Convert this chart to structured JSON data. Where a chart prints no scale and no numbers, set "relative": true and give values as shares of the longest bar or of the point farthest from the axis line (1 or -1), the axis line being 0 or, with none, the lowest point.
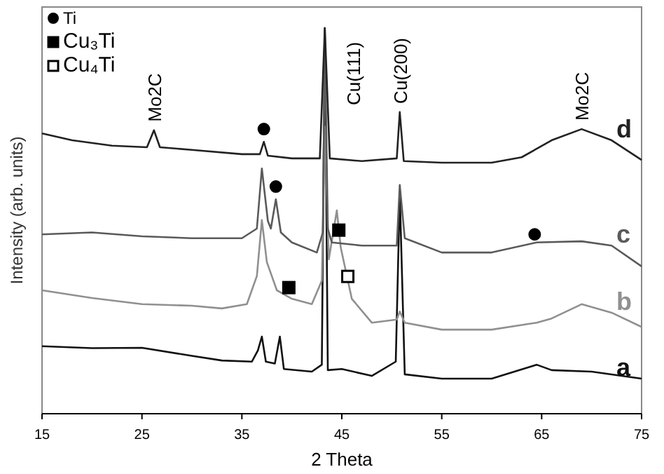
{
  "chart_data": {
    "type": "line",
    "relative": true,
    "xlabel": "2 Theta",
    "ylabel": "Intensity (arb. units)",
    "xlim": [
      15,
      75
    ],
    "xticks": [
      15,
      25,
      35,
      45,
      55,
      65,
      75
    ],
    "legend": "top left",
    "line_style": "solid",
    "series": [
      {
        "name": "a",
        "color": "#111111",
        "x": [
          15,
          20,
          25,
          30,
          33,
          36,
          36.6,
          37,
          37.4,
          38.3,
          38.8,
          39.2,
          42,
          43,
          43.3,
          43.6,
          45,
          48,
          50.4,
          50.8,
          51.3,
          55,
          60,
          64.5,
          66,
          70,
          75
        ],
        "values": [
          0.175,
          0.17,
          0.171,
          0.15,
          0.138,
          0.135,
          0.164,
          0.2,
          0.135,
          0.13,
          0.2,
          0.116,
          0.109,
          0.127,
          1.0,
          0.113,
          0.116,
          0.098,
          0.135,
          0.571,
          0.102,
          0.091,
          0.091,
          0.127,
          0.113,
          0.109,
          0.091
        ]
      },
      {
        "name": "b",
        "color": "#909090",
        "x": [
          15,
          20,
          25,
          30,
          33,
          35.5,
          36.5,
          37,
          37.5,
          38.5,
          40,
          42,
          43,
          43.3,
          43.7,
          44.5,
          44.9,
          46,
          48,
          50.5,
          50.8,
          51.3,
          55,
          60,
          64.5,
          66,
          69,
          72,
          75
        ],
        "values": [
          0.32,
          0.3,
          0.284,
          0.28,
          0.273,
          0.284,
          0.357,
          0.502,
          0.393,
          0.32,
          0.298,
          0.284,
          0.345,
          0.745,
          0.4,
          0.527,
          0.43,
          0.298,
          0.236,
          0.244,
          0.265,
          0.236,
          0.218,
          0.218,
          0.236,
          0.247,
          0.284,
          0.262,
          0.225
        ]
      },
      {
        "name": "c",
        "color": "#5a5a5a",
        "x": [
          15,
          20,
          25,
          30,
          35,
          36.5,
          37,
          37.6,
          37.9,
          38.4,
          38.9,
          40,
          42.5,
          43.1,
          43.3,
          43.6,
          44,
          47,
          50.5,
          50.8,
          51.3,
          55,
          60,
          64.5,
          69,
          72,
          75
        ],
        "values": [
          0.465,
          0.47,
          0.46,
          0.455,
          0.455,
          0.48,
          0.636,
          0.5,
          0.48,
          0.556,
          0.47,
          0.444,
          0.418,
          0.47,
          0.98,
          0.48,
          0.444,
          0.436,
          0.436,
          0.593,
          0.455,
          0.418,
          0.418,
          0.444,
          0.447,
          0.436,
          0.382
        ]
      },
      {
        "name": "d",
        "color": "#222222",
        "x": [
          15,
          18,
          22,
          25.5,
          26.2,
          26.8,
          30,
          35,
          36.8,
          37.2,
          37.6,
          40,
          42.8,
          43.3,
          43.8,
          47,
          50.5,
          50.8,
          51.2,
          55,
          60,
          63,
          66,
          69,
          72,
          75
        ],
        "values": [
          0.727,
          0.709,
          0.695,
          0.691,
          0.735,
          0.691,
          0.684,
          0.673,
          0.673,
          0.705,
          0.669,
          0.662,
          0.662,
          1.0,
          0.662,
          0.655,
          0.662,
          0.782,
          0.655,
          0.651,
          0.651,
          0.665,
          0.709,
          0.738,
          0.709,
          0.658
        ]
      },
      {
        "name": "Ti",
        "type": "scatter",
        "marker": "circle",
        "color": "#000000",
        "x": [
          37.2,
          38.4,
          64.3
        ],
        "values": [
          0.738,
          0.589,
          0.465
        ]
      },
      {
        "name": "Cu₃Ti",
        "type": "scatter",
        "marker": "square",
        "color": "#000000",
        "x": [
          39.7,
          44.7
        ],
        "values": [
          0.327,
          0.476
        ]
      },
      {
        "name": "Cu₄Ti",
        "type": "scatter",
        "marker": "square",
        "color": "#ffffff",
        "x": [
          45.6
        ],
        "values": [
          0.356
        ]
      }
    ],
    "annotations": [
      {
        "text": "Mo2C",
        "x": 26.2,
        "y": 0.735
      },
      {
        "text": "Cu(111)",
        "x": 43.3,
        "y": 1.0
      },
      {
        "text": "Cu(200)",
        "x": 50.8,
        "y": 0.782
      },
      {
        "text": "Mo2C",
        "x": 69,
        "y": 0.738
      }
    ]
  }
}
